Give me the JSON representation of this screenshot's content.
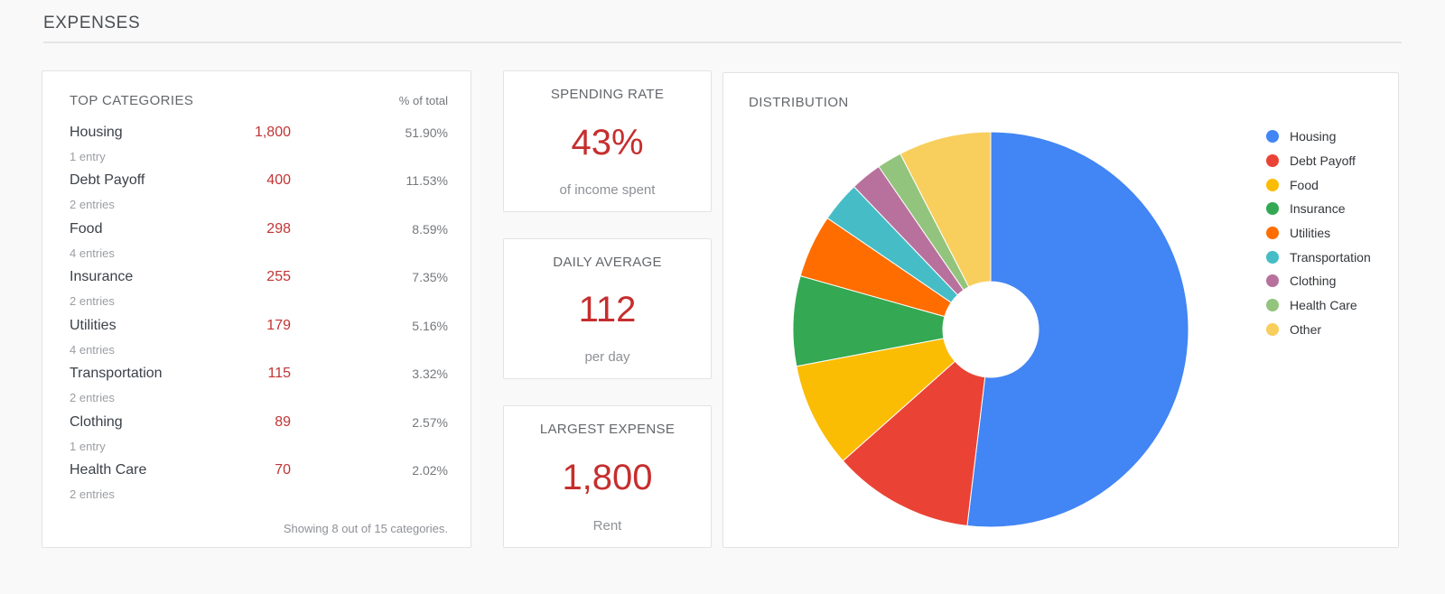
{
  "page": {
    "title": "EXPENSES",
    "background": "#f9f9f9",
    "accent_red": "#c62e2e"
  },
  "top_categories": {
    "title": "TOP CATEGORIES",
    "pct_header": "% of total",
    "rows": [
      {
        "name": "Housing",
        "value": "1,800",
        "pct": "51.90%",
        "entries": "1 entry"
      },
      {
        "name": "Debt Payoff",
        "value": "400",
        "pct": "11.53%",
        "entries": "2 entries"
      },
      {
        "name": "Food",
        "value": "298",
        "pct": "8.59%",
        "entries": "4 entries"
      },
      {
        "name": "Insurance",
        "value": "255",
        "pct": "7.35%",
        "entries": "2 entries"
      },
      {
        "name": "Utilities",
        "value": "179",
        "pct": "5.16%",
        "entries": "4 entries"
      },
      {
        "name": "Transportation",
        "value": "115",
        "pct": "3.32%",
        "entries": "2 entries"
      },
      {
        "name": "Clothing",
        "value": "89",
        "pct": "2.57%",
        "entries": "1 entry"
      },
      {
        "name": "Health Care",
        "value": "70",
        "pct": "2.02%",
        "entries": "2 entries"
      }
    ],
    "footer": "Showing 8 out of 15 categories."
  },
  "stat_cards": [
    {
      "title": "SPENDING RATE",
      "value": "43%",
      "subtitle": "of income spent"
    },
    {
      "title": "DAILY AVERAGE",
      "value": "112",
      "subtitle": "per day"
    },
    {
      "title": "LARGEST EXPENSE",
      "value": "1,800",
      "subtitle": "Rent"
    }
  ],
  "chart_data": {
    "type": "pie",
    "variant": "donut",
    "title": "DISTRIBUTION",
    "labels": [
      "Housing",
      "Debt Payoff",
      "Food",
      "Insurance",
      "Utilities",
      "Transportation",
      "Clothing",
      "Health Care",
      "Other"
    ],
    "values_pct": [
      51.9,
      11.53,
      8.59,
      7.35,
      5.16,
      3.32,
      2.57,
      2.02,
      7.56
    ],
    "colors": [
      "#4285f4",
      "#ea4335",
      "#fbbc04",
      "#34a853",
      "#ff6d01",
      "#46bdc6",
      "#b8719d",
      "#93c47d",
      "#f8ce5d"
    ],
    "legend_position": "right",
    "start_angle": "12 o'clock",
    "direction": "clockwise",
    "inner_radius_ratio": 0.24
  }
}
